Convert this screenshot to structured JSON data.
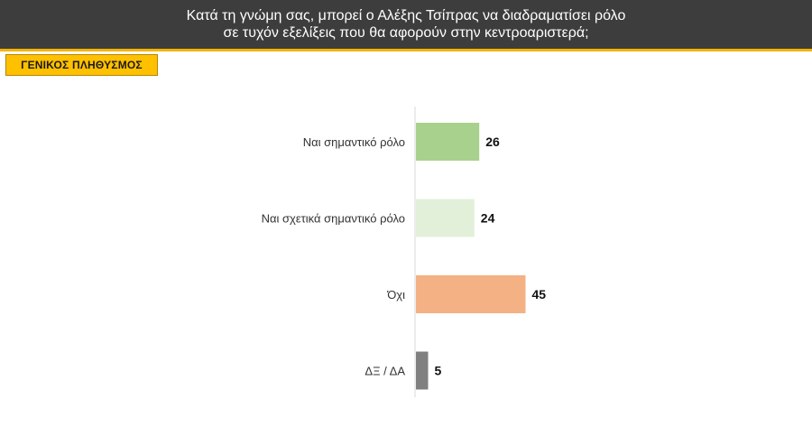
{
  "header": {
    "title_line1": "Κατά τη γνώμη σας, μπορεί ο Αλέξης Τσίπρας να διαδραματίσει ρόλο",
    "title_line2": "σε τυχόν εξελίξεις που θα αφορούν στην κεντροαριστερά;"
  },
  "segment": {
    "label": "ΓΕΝΙΚΟΣ ΠΛΗΘΥΣΜΟΣ"
  },
  "chart_data": {
    "type": "bar",
    "orientation": "horizontal",
    "title": "Κατά τη γνώμη σας, μπορεί ο Αλέξης Τσίπρας να διαδραματίσει ρόλο σε τυχόν εξελίξεις που θα αφορούν στην κεντροαριστερά;",
    "categories": [
      "Ναι σημαντικό ρόλο",
      "Ναι σχετικά σημαντικό ρόλο",
      "Όχι",
      "ΔΞ / ΔΑ"
    ],
    "values": [
      26,
      24,
      45,
      5
    ],
    "colors": [
      "#a9d18e",
      "#e2f0d9",
      "#f4b183",
      "#808080"
    ],
    "xlim": [
      0,
      100
    ],
    "grid": false,
    "data_labels": true
  }
}
